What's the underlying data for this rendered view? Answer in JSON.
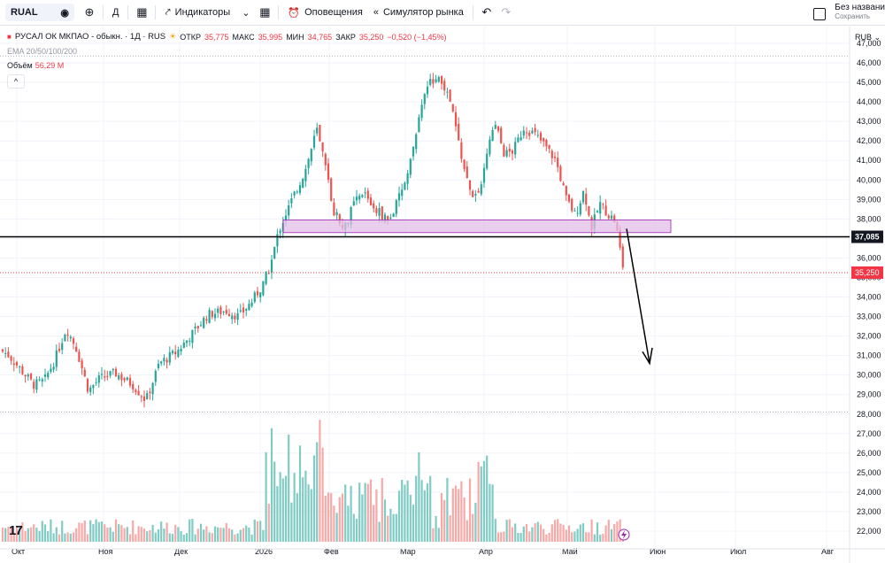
{
  "toolbar": {
    "symbol": "RUAL",
    "interval": "Д",
    "indicators_label": "Индикаторы",
    "alerts_label": "Оповещения",
    "replay_label": "Симулятор рынка",
    "save_title": "Без названи",
    "save_sub": "Сохранить"
  },
  "legend": {
    "title": "РУСАЛ ОК МКПАО - обыкн. · 1Д · RUS",
    "open_label": "ОТКР",
    "open": "35,775",
    "high_label": "МАКС",
    "high": "35,995",
    "low_label": "МИН",
    "low": "34,765",
    "close_label": "ЗАКР",
    "close": "35,250",
    "change": "−0,520 (−1,45%)",
    "ema": "EMA 20/50/100/200",
    "volume_label": "Объём",
    "volume": "56,29 M",
    "collapse": "^"
  },
  "currency": "RUB",
  "price_axis": [
    "47,000",
    "46,000",
    "45,000",
    "44,000",
    "43,000",
    "42,000",
    "41,000",
    "40,000",
    "39,000",
    "38,000",
    "37,000",
    "36,000",
    "35,000",
    "34,000",
    "33,000",
    "32,000",
    "31,000",
    "30,000",
    "29,000",
    "28,000",
    "27,000",
    "26,000",
    "25,000",
    "24,000",
    "23,000",
    "22,000"
  ],
  "time_axis": [
    "Окт",
    "Ноя",
    "Дек",
    "2026",
    "Фев",
    "Мар",
    "Апр",
    "Май",
    "Июн",
    "Июл",
    "Авг"
  ],
  "hline_label": "37,085",
  "last_price_label": "35,250",
  "tv_logo": "17",
  "colors": {
    "up": "#26a69a",
    "down": "#ef5350",
    "zone": "#e1bee7",
    "last": "#f23645"
  }
}
